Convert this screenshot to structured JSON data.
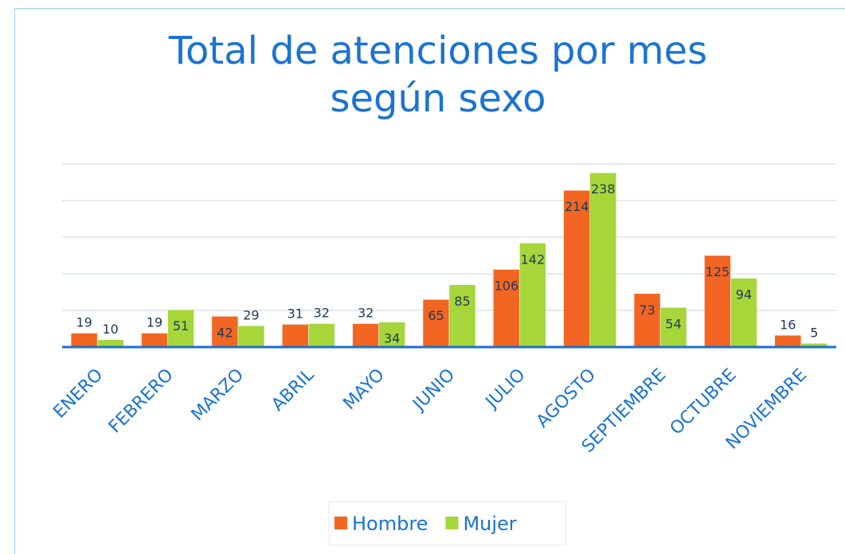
{
  "chart_data": {
    "type": "bar",
    "title": "Total de atenciones por mes según sexo",
    "categories": [
      "ENERO",
      "FEBRERO",
      "MARZO",
      "ABRIL",
      "MAYO",
      "JUNIO",
      "JULIO",
      "AGOSTO",
      "SEPTIEMBRE",
      "OCTUBRE",
      "NOVIEMBRE"
    ],
    "series": [
      {
        "name": "Hombre",
        "color": "#f26522",
        "values": [
          19,
          19,
          42,
          31,
          32,
          65,
          106,
          214,
          73,
          125,
          16
        ]
      },
      {
        "name": "Mujer",
        "color": "#a6d63a",
        "values": [
          10,
          51,
          29,
          32,
          34,
          85,
          142,
          238,
          54,
          94,
          5
        ]
      }
    ],
    "ylim": [
      0,
      250
    ],
    "yticks": [
      0,
      50,
      100,
      150,
      200,
      250
    ],
    "grid": true,
    "legend": "bottom"
  }
}
